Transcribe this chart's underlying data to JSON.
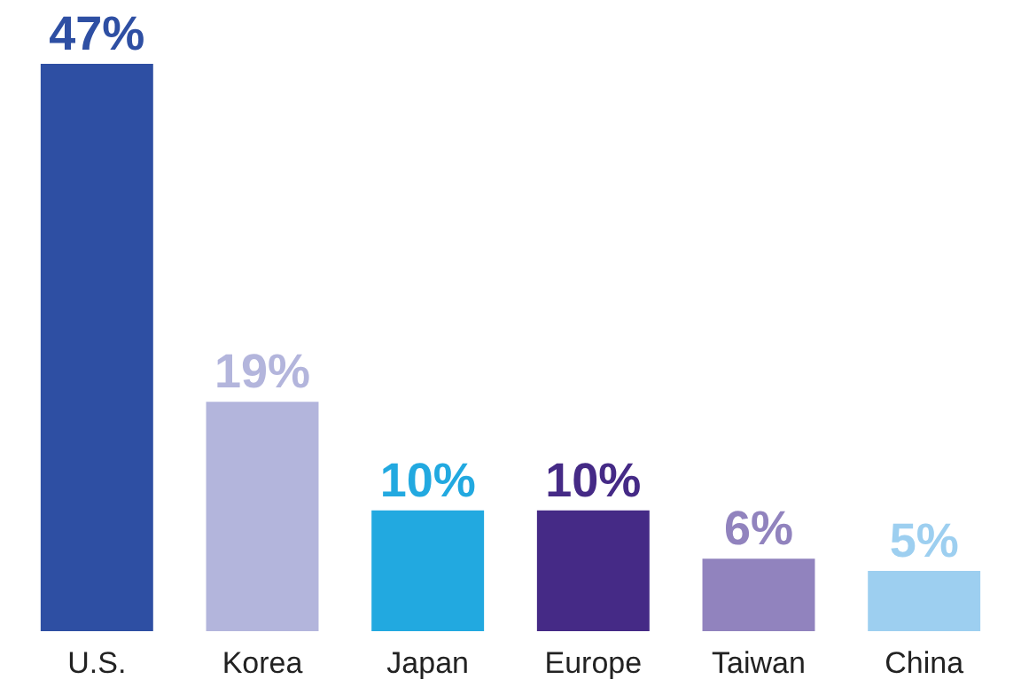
{
  "chart_data": {
    "type": "bar",
    "categories": [
      "U.S.",
      "Korea",
      "Japan",
      "Europe",
      "Taiwan",
      "China"
    ],
    "values": [
      47,
      19,
      10,
      10,
      6,
      5
    ],
    "colors": [
      "#2e4fa3",
      "#b3b5dc",
      "#22a9e0",
      "#452a86",
      "#9183be",
      "#9dcff0"
    ],
    "value_labels": [
      "47%",
      "19%",
      "10%",
      "10%",
      "6%",
      "5%"
    ],
    "grid": false,
    "legend": false
  }
}
